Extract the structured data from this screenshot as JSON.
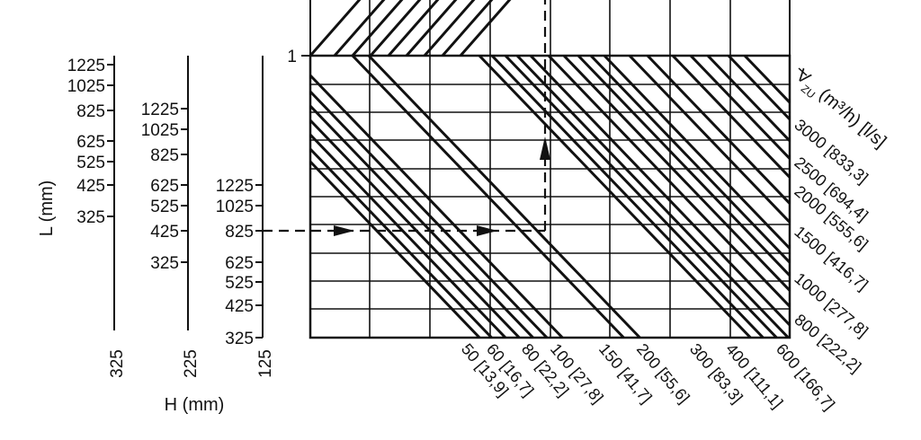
{
  "diagram": {
    "y_axis_marker": "1",
    "vzu_label": {
      "symbol": "V",
      "subscript": "ZU",
      "units": "(m³/h) [l/s]"
    },
    "scales": [
      {
        "id": "L",
        "title": "L (mm)",
        "base_value": "325",
        "ticks": [
          "1225",
          "1025",
          "825",
          "625",
          "525",
          "425",
          "325"
        ]
      },
      {
        "id": "H225",
        "base_value": "225",
        "ticks": [
          "1225",
          "1025",
          "825",
          "625",
          "525",
          "425",
          "325"
        ]
      },
      {
        "id": "H125",
        "base_value": "125",
        "ticks": [
          "1225",
          "1025",
          "825",
          "625",
          "525",
          "425",
          "325"
        ]
      }
    ],
    "h_title": "H (mm)",
    "flow_bottom": [
      "50 [13,9]",
      "60 [16,7]",
      "80 [22,2]",
      "100 [27,8]",
      "150 [41,7]",
      "200 [55,6]",
      "300 [83,3]",
      "400 [111,1]",
      "600 [166,7]"
    ],
    "flow_right": [
      "3000 [833,3]",
      "2500 [694,4]",
      "2000 [555,6]",
      "1500 [416,7]",
      "1000 [277,8]",
      "800 [222,2]"
    ],
    "example_path": {
      "start_value": "825",
      "description_arrow_count": 3
    }
  }
}
